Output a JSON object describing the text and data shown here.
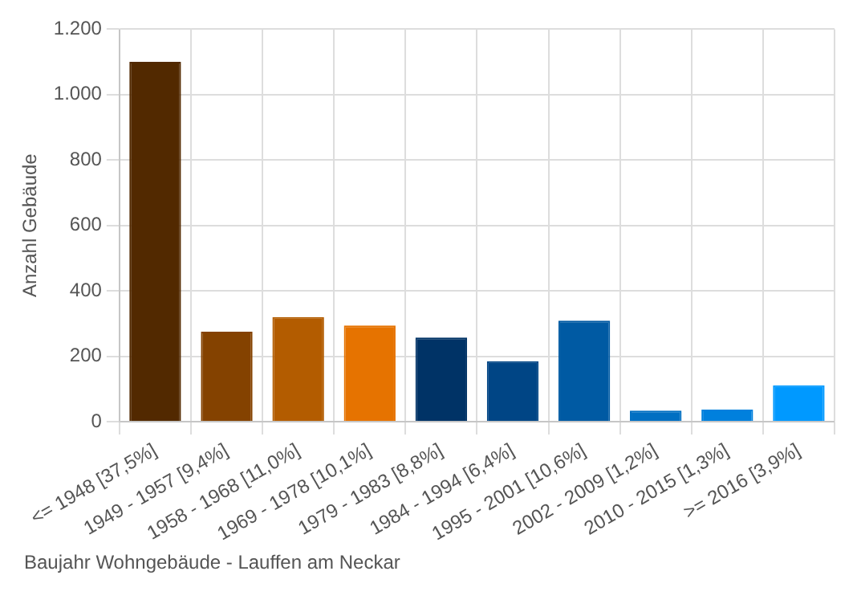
{
  "chart_data": {
    "type": "bar",
    "title": "Baujahr Wohngebäude - Lauffen am Neckar",
    "ylabel": "Anzahl Gebäude",
    "categories": [
      "<= 1948 [37,5%]",
      "1949 - 1957 [9,4%]",
      "1958 - 1968 [11,0%]",
      "1969 - 1978 [10,1%]",
      "1979 - 1983 [8,8%]",
      "1984 - 1994 [6,4%]",
      "1995 - 2001 [10,6%]",
      "2002 - 2009 [1,2%]",
      "2010 - 2015 [1,3%]",
      ">= 2016 [3,9%]"
    ],
    "values": [
      1100,
      275,
      320,
      294,
      257,
      185,
      309,
      34,
      37,
      111
    ],
    "colors": [
      "#522900",
      "#844200",
      "#b35c00",
      "#e67300",
      "#003366",
      "#004585",
      "#005aa3",
      "#006fc2",
      "#0080dd",
      "#0099ff"
    ],
    "ylim": [
      0,
      1200
    ],
    "yticks": [
      0,
      200,
      400,
      600,
      800,
      {
        "value": 1000,
        "label": "1.000"
      },
      {
        "value": 1200,
        "label": "1.200"
      }
    ],
    "grid": true,
    "legend": false
  }
}
